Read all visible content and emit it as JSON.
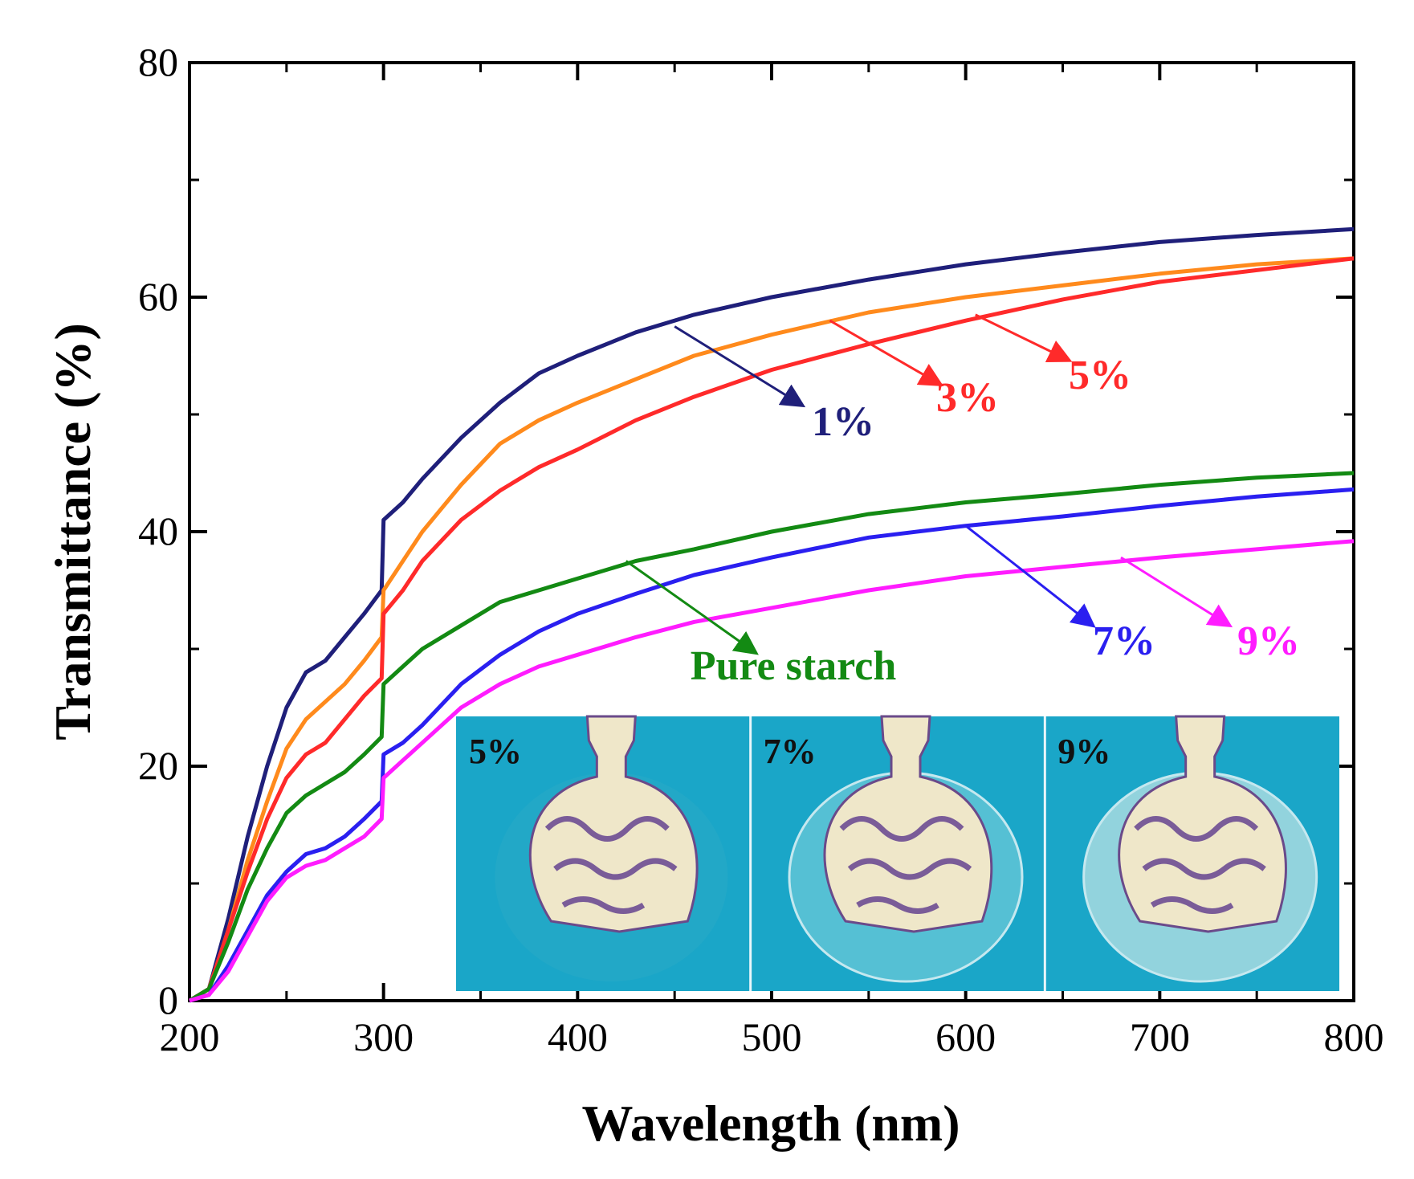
{
  "chart_data": {
    "type": "line",
    "xlabel": "Wavelength (nm)",
    "ylabel": "Transmittance (%)",
    "xlim": [
      200,
      800
    ],
    "ylim": [
      0,
      80
    ],
    "x_ticks": [
      200,
      300,
      400,
      500,
      600,
      700,
      800
    ],
    "y_ticks": [
      0,
      20,
      40,
      60,
      80
    ],
    "grid": false,
    "series": [
      {
        "name": "1%",
        "color": "#1f1f7a",
        "x": [
          200,
          210,
          220,
          230,
          240,
          250,
          260,
          270,
          280,
          290,
          299,
          300,
          310,
          320,
          340,
          360,
          380,
          400,
          430,
          460,
          500,
          550,
          600,
          650,
          700,
          750,
          800
        ],
        "y": [
          0,
          1,
          7,
          14,
          20,
          25,
          28,
          29,
          31,
          33,
          35,
          41,
          42.5,
          44.5,
          48,
          51,
          53.5,
          55,
          57,
          58.5,
          60,
          61.5,
          62.8,
          63.8,
          64.7,
          65.3,
          65.8
        ]
      },
      {
        "name": "3%",
        "color": "#ff8a1c",
        "x": [
          200,
          210,
          220,
          230,
          240,
          250,
          260,
          270,
          280,
          290,
          299,
          300,
          310,
          320,
          340,
          360,
          380,
          400,
          430,
          460,
          500,
          550,
          600,
          650,
          700,
          750,
          800
        ],
        "y": [
          0,
          1,
          6,
          12,
          17,
          21.5,
          24,
          25.5,
          27,
          29,
          31,
          35,
          37.5,
          40,
          44,
          47.5,
          49.5,
          51,
          53,
          55,
          56.8,
          58.7,
          60,
          61,
          62,
          62.8,
          63.3
        ]
      },
      {
        "name": "5%",
        "color": "#ff2a2a",
        "x": [
          200,
          210,
          220,
          230,
          240,
          250,
          260,
          270,
          280,
          290,
          299,
          300,
          310,
          320,
          340,
          360,
          380,
          400,
          430,
          460,
          500,
          550,
          600,
          650,
          700,
          750,
          800
        ],
        "y": [
          0,
          1,
          6,
          11,
          15.5,
          19,
          21,
          22,
          24,
          26,
          27.5,
          33,
          35,
          37.5,
          41,
          43.5,
          45.5,
          47,
          49.5,
          51.5,
          53.8,
          56,
          58,
          59.8,
          61.3,
          62.3,
          63.3
        ]
      },
      {
        "name": "Pure starch",
        "color": "#138a13",
        "x": [
          200,
          210,
          220,
          230,
          240,
          250,
          260,
          270,
          280,
          290,
          299,
          300,
          310,
          320,
          340,
          360,
          380,
          400,
          430,
          460,
          500,
          550,
          600,
          650,
          700,
          750,
          800
        ],
        "y": [
          0,
          1,
          5,
          9.5,
          13,
          16,
          17.5,
          18.5,
          19.5,
          21,
          22.5,
          27,
          28.5,
          30,
          32,
          34,
          35,
          36,
          37.5,
          38.5,
          40,
          41.5,
          42.5,
          43.2,
          44,
          44.6,
          45
        ]
      },
      {
        "name": "7%",
        "color": "#2a1ff0",
        "x": [
          200,
          210,
          220,
          230,
          240,
          250,
          260,
          270,
          280,
          290,
          299,
          300,
          310,
          320,
          340,
          360,
          380,
          400,
          430,
          460,
          500,
          550,
          600,
          650,
          700,
          750,
          800
        ],
        "y": [
          0,
          0.5,
          3,
          6,
          9,
          11,
          12.5,
          13,
          14,
          15.5,
          17,
          21,
          22,
          23.5,
          27,
          29.5,
          31.5,
          33,
          34.7,
          36.3,
          37.8,
          39.5,
          40.5,
          41.3,
          42.2,
          43,
          43.6
        ]
      },
      {
        "name": "9%",
        "color": "#ff1cff",
        "x": [
          200,
          210,
          220,
          230,
          240,
          250,
          260,
          270,
          280,
          290,
          299,
          300,
          310,
          320,
          340,
          360,
          380,
          400,
          430,
          460,
          500,
          550,
          600,
          650,
          700,
          750,
          800
        ],
        "y": [
          0,
          0.5,
          2.5,
          5.5,
          8.5,
          10.5,
          11.5,
          12,
          13,
          14,
          15.5,
          19,
          20.5,
          22,
          25,
          27,
          28.5,
          29.5,
          31,
          32.3,
          33.5,
          35,
          36.2,
          37,
          37.8,
          38.5,
          39.2
        ]
      }
    ],
    "annotations": [
      {
        "text": "1%",
        "color": "#1f1f7a",
        "arrow_from_x": 450,
        "arrow_from_y": 57.5
      },
      {
        "text": "3%",
        "color": "#ff2a2a",
        "arrow_from_x": 530,
        "arrow_from_y": 58
      },
      {
        "text": "5%",
        "color": "#ff2a2a",
        "arrow_from_x": 605,
        "arrow_from_y": 58.5
      },
      {
        "text": "Pure starch",
        "color": "#138a13",
        "arrow_from_x": 425,
        "arrow_from_y": 37.5
      },
      {
        "text": "7%",
        "color": "#2a1ff0",
        "arrow_from_x": 600,
        "arrow_from_y": 40.5
      },
      {
        "text": "9%",
        "color": "#ff1cff",
        "arrow_from_x": 680,
        "arrow_from_y": 37.8
      }
    ]
  },
  "inset": {
    "background": "#1aa6c8",
    "panels": [
      {
        "label": "5%"
      },
      {
        "label": "7%"
      },
      {
        "label": "9%"
      }
    ]
  }
}
